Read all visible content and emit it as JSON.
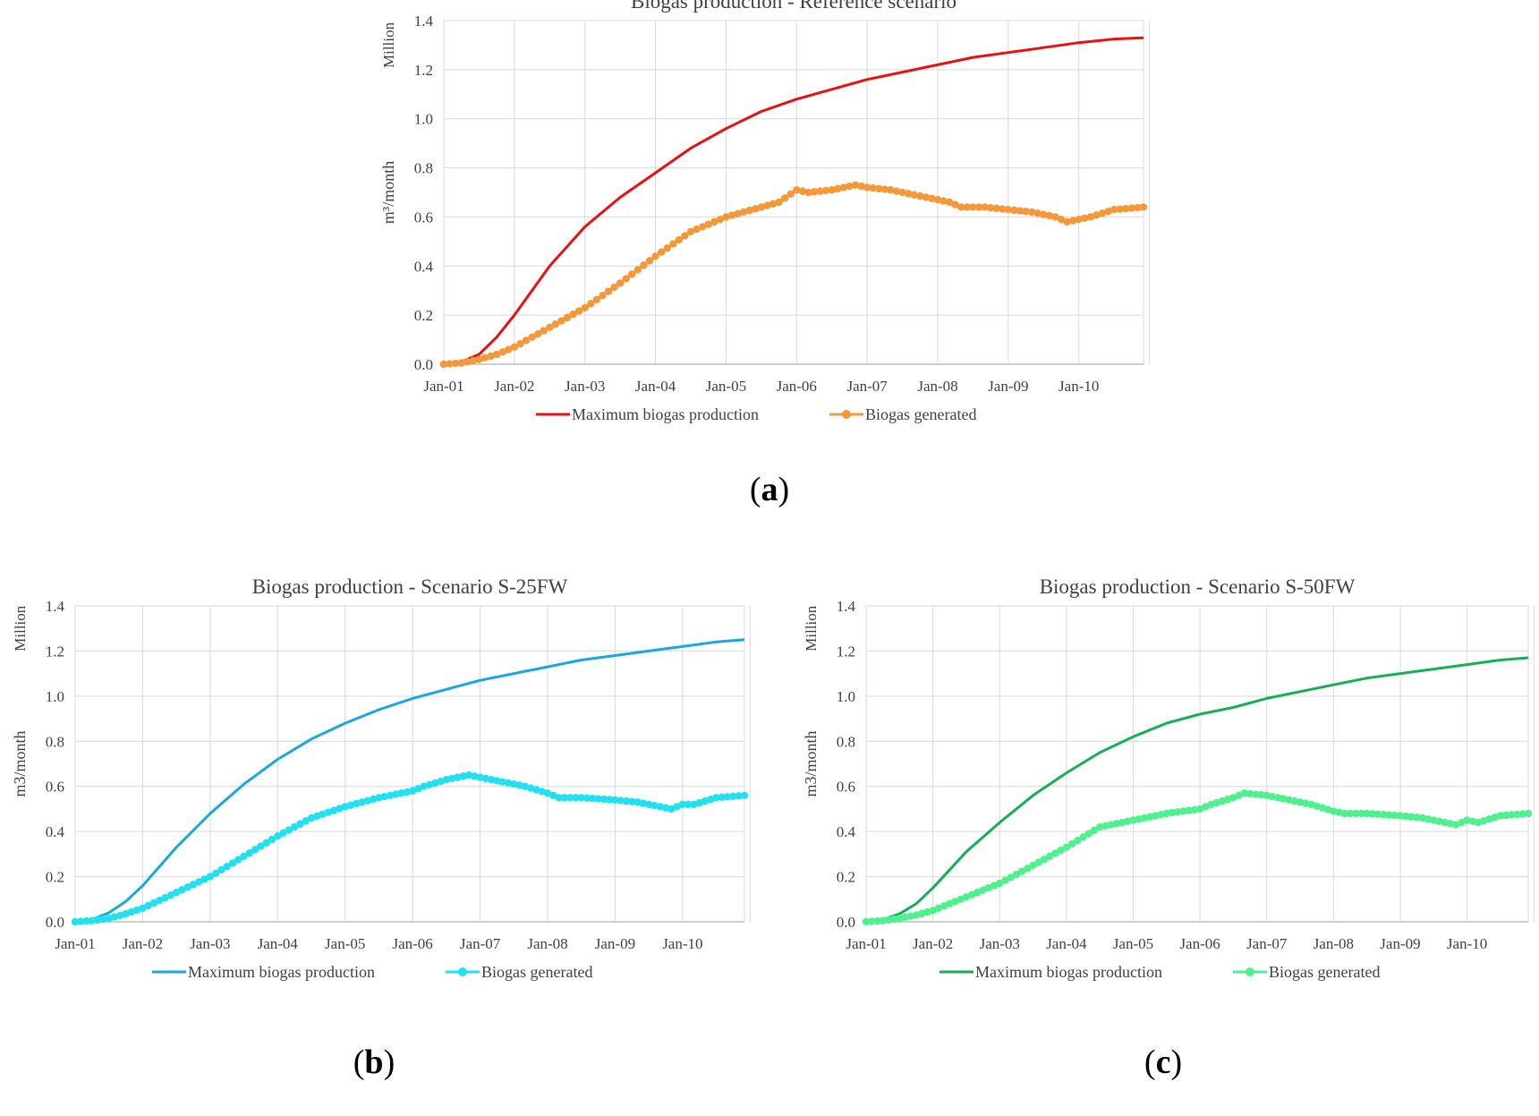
{
  "chart_data": [
    {
      "type": "line",
      "panel_label": "a",
      "title": "Biogas production - Reference scenario",
      "ylabel": "m³/month",
      "yunit_label": "Million",
      "ylim": [
        0,
        1.4
      ],
      "yticks": [
        "0.0",
        "0.2",
        "0.4",
        "0.6",
        "0.8",
        "1.0",
        "1.2",
        "1.4"
      ],
      "xticks": [
        "Jan-01",
        "Jan-02",
        "Jan-03",
        "Jan-04",
        "Jan-05",
        "Jan-06",
        "Jan-07",
        "Jan-08",
        "Jan-09",
        "Jan-10"
      ],
      "xlim_months": [
        0,
        119
      ],
      "grid": true,
      "legend_position": "bottom",
      "series": [
        {
          "name": "Maximum biogas production",
          "color": "#e81010",
          "marker": false,
          "points": [
            [
              0,
              0
            ],
            [
              3,
              0.01
            ],
            [
              6,
              0.04
            ],
            [
              9,
              0.11
            ],
            [
              12,
              0.2
            ],
            [
              18,
              0.4
            ],
            [
              24,
              0.56
            ],
            [
              30,
              0.68
            ],
            [
              36,
              0.78
            ],
            [
              42,
              0.88
            ],
            [
              48,
              0.96
            ],
            [
              54,
              1.03
            ],
            [
              60,
              1.08
            ],
            [
              66,
              1.12
            ],
            [
              72,
              1.16
            ],
            [
              78,
              1.19
            ],
            [
              84,
              1.22
            ],
            [
              90,
              1.25
            ],
            [
              96,
              1.27
            ],
            [
              102,
              1.29
            ],
            [
              108,
              1.31
            ],
            [
              114,
              1.325
            ],
            [
              119,
              1.33
            ]
          ]
        },
        {
          "name": "Biogas generated",
          "color": "#f5983a",
          "marker": true,
          "points": [
            [
              0,
              0
            ],
            [
              3,
              0.005
            ],
            [
              6,
              0.02
            ],
            [
              9,
              0.04
            ],
            [
              12,
              0.07
            ],
            [
              18,
              0.15
            ],
            [
              24,
              0.23
            ],
            [
              30,
              0.33
            ],
            [
              36,
              0.44
            ],
            [
              42,
              0.54
            ],
            [
              48,
              0.6
            ],
            [
              54,
              0.64
            ],
            [
              57,
              0.66
            ],
            [
              60,
              0.71
            ],
            [
              62,
              0.7
            ],
            [
              66,
              0.71
            ],
            [
              70,
              0.73
            ],
            [
              72,
              0.72
            ],
            [
              76,
              0.71
            ],
            [
              80,
              0.69
            ],
            [
              84,
              0.67
            ],
            [
              86,
              0.66
            ],
            [
              88,
              0.64
            ],
            [
              92,
              0.64
            ],
            [
              96,
              0.63
            ],
            [
              100,
              0.62
            ],
            [
              104,
              0.6
            ],
            [
              106,
              0.58
            ],
            [
              108,
              0.59
            ],
            [
              110,
              0.6
            ],
            [
              114,
              0.63
            ],
            [
              119,
              0.64
            ]
          ]
        }
      ]
    },
    {
      "type": "line",
      "panel_label": "b",
      "title": "Biogas production - Scenario S-25FW",
      "ylabel": "m3/month",
      "yunit_label": "Million",
      "ylim": [
        0,
        1.4
      ],
      "yticks": [
        "0.0",
        "0.2",
        "0.4",
        "0.6",
        "0.8",
        "1.0",
        "1.2",
        "1.4"
      ],
      "xticks": [
        "Jan-01",
        "Jan-02",
        "Jan-03",
        "Jan-04",
        "Jan-05",
        "Jan-06",
        "Jan-07",
        "Jan-08",
        "Jan-09",
        "Jan-10"
      ],
      "xlim_months": [
        0,
        119
      ],
      "grid": true,
      "legend_position": "bottom",
      "series": [
        {
          "name": "Maximum biogas production",
          "color": "#1aa6df",
          "marker": false,
          "points": [
            [
              0,
              0
            ],
            [
              3,
              0.01
            ],
            [
              6,
              0.04
            ],
            [
              9,
              0.09
            ],
            [
              12,
              0.16
            ],
            [
              18,
              0.33
            ],
            [
              24,
              0.48
            ],
            [
              30,
              0.61
            ],
            [
              36,
              0.72
            ],
            [
              42,
              0.81
            ],
            [
              48,
              0.88
            ],
            [
              54,
              0.94
            ],
            [
              60,
              0.99
            ],
            [
              66,
              1.03
            ],
            [
              72,
              1.07
            ],
            [
              78,
              1.1
            ],
            [
              84,
              1.13
            ],
            [
              90,
              1.16
            ],
            [
              96,
              1.18
            ],
            [
              102,
              1.2
            ],
            [
              108,
              1.22
            ],
            [
              114,
              1.24
            ],
            [
              119,
              1.25
            ]
          ]
        },
        {
          "name": "Biogas generated",
          "color": "#22e0f0",
          "marker": true,
          "points": [
            [
              0,
              0
            ],
            [
              3,
              0.005
            ],
            [
              6,
              0.015
            ],
            [
              9,
              0.035
            ],
            [
              12,
              0.06
            ],
            [
              18,
              0.13
            ],
            [
              24,
              0.2
            ],
            [
              30,
              0.29
            ],
            [
              36,
              0.38
            ],
            [
              42,
              0.46
            ],
            [
              48,
              0.51
            ],
            [
              54,
              0.55
            ],
            [
              60,
              0.58
            ],
            [
              62,
              0.6
            ],
            [
              66,
              0.63
            ],
            [
              70,
              0.65
            ],
            [
              72,
              0.64
            ],
            [
              76,
              0.62
            ],
            [
              80,
              0.6
            ],
            [
              84,
              0.57
            ],
            [
              86,
              0.55
            ],
            [
              90,
              0.55
            ],
            [
              96,
              0.54
            ],
            [
              100,
              0.53
            ],
            [
              104,
              0.51
            ],
            [
              106,
              0.5
            ],
            [
              108,
              0.52
            ],
            [
              110,
              0.52
            ],
            [
              114,
              0.55
            ],
            [
              119,
              0.56
            ]
          ]
        }
      ]
    },
    {
      "type": "line",
      "panel_label": "c",
      "title": "Biogas production - Scenario S-50FW",
      "ylabel": "m3/month",
      "yunit_label": "Million",
      "ylim": [
        0,
        1.4
      ],
      "yticks": [
        "0.0",
        "0.2",
        "0.4",
        "0.6",
        "0.8",
        "1.0",
        "1.2",
        "1.4"
      ],
      "xticks": [
        "Jan-01",
        "Jan-02",
        "Jan-03",
        "Jan-04",
        "Jan-05",
        "Jan-06",
        "Jan-07",
        "Jan-08",
        "Jan-09",
        "Jan-10"
      ],
      "xlim_months": [
        0,
        119
      ],
      "grid": true,
      "legend_position": "bottom",
      "series": [
        {
          "name": "Maximum biogas production",
          "color": "#17ae55",
          "marker": false,
          "points": [
            [
              0,
              0
            ],
            [
              3,
              0.01
            ],
            [
              6,
              0.035
            ],
            [
              9,
              0.08
            ],
            [
              12,
              0.15
            ],
            [
              18,
              0.31
            ],
            [
              24,
              0.44
            ],
            [
              30,
              0.56
            ],
            [
              36,
              0.66
            ],
            [
              42,
              0.75
            ],
            [
              48,
              0.82
            ],
            [
              54,
              0.88
            ],
            [
              60,
              0.92
            ],
            [
              66,
              0.95
            ],
            [
              72,
              0.99
            ],
            [
              78,
              1.02
            ],
            [
              84,
              1.05
            ],
            [
              90,
              1.08
            ],
            [
              96,
              1.1
            ],
            [
              102,
              1.12
            ],
            [
              108,
              1.14
            ],
            [
              114,
              1.16
            ],
            [
              119,
              1.17
            ]
          ]
        },
        {
          "name": "Biogas generated",
          "color": "#4ff08e",
          "marker": true,
          "points": [
            [
              0,
              0
            ],
            [
              3,
              0.005
            ],
            [
              6,
              0.015
            ],
            [
              9,
              0.03
            ],
            [
              12,
              0.05
            ],
            [
              18,
              0.11
            ],
            [
              24,
              0.17
            ],
            [
              30,
              0.25
            ],
            [
              36,
              0.33
            ],
            [
              42,
              0.42
            ],
            [
              48,
              0.45
            ],
            [
              54,
              0.48
            ],
            [
              60,
              0.5
            ],
            [
              62,
              0.52
            ],
            [
              66,
              0.55
            ],
            [
              68,
              0.57
            ],
            [
              72,
              0.56
            ],
            [
              76,
              0.54
            ],
            [
              80,
              0.52
            ],
            [
              84,
              0.49
            ],
            [
              86,
              0.48
            ],
            [
              90,
              0.48
            ],
            [
              96,
              0.47
            ],
            [
              100,
              0.46
            ],
            [
              104,
              0.44
            ],
            [
              106,
              0.43
            ],
            [
              108,
              0.45
            ],
            [
              110,
              0.44
            ],
            [
              114,
              0.47
            ],
            [
              119,
              0.48
            ]
          ]
        }
      ]
    }
  ]
}
